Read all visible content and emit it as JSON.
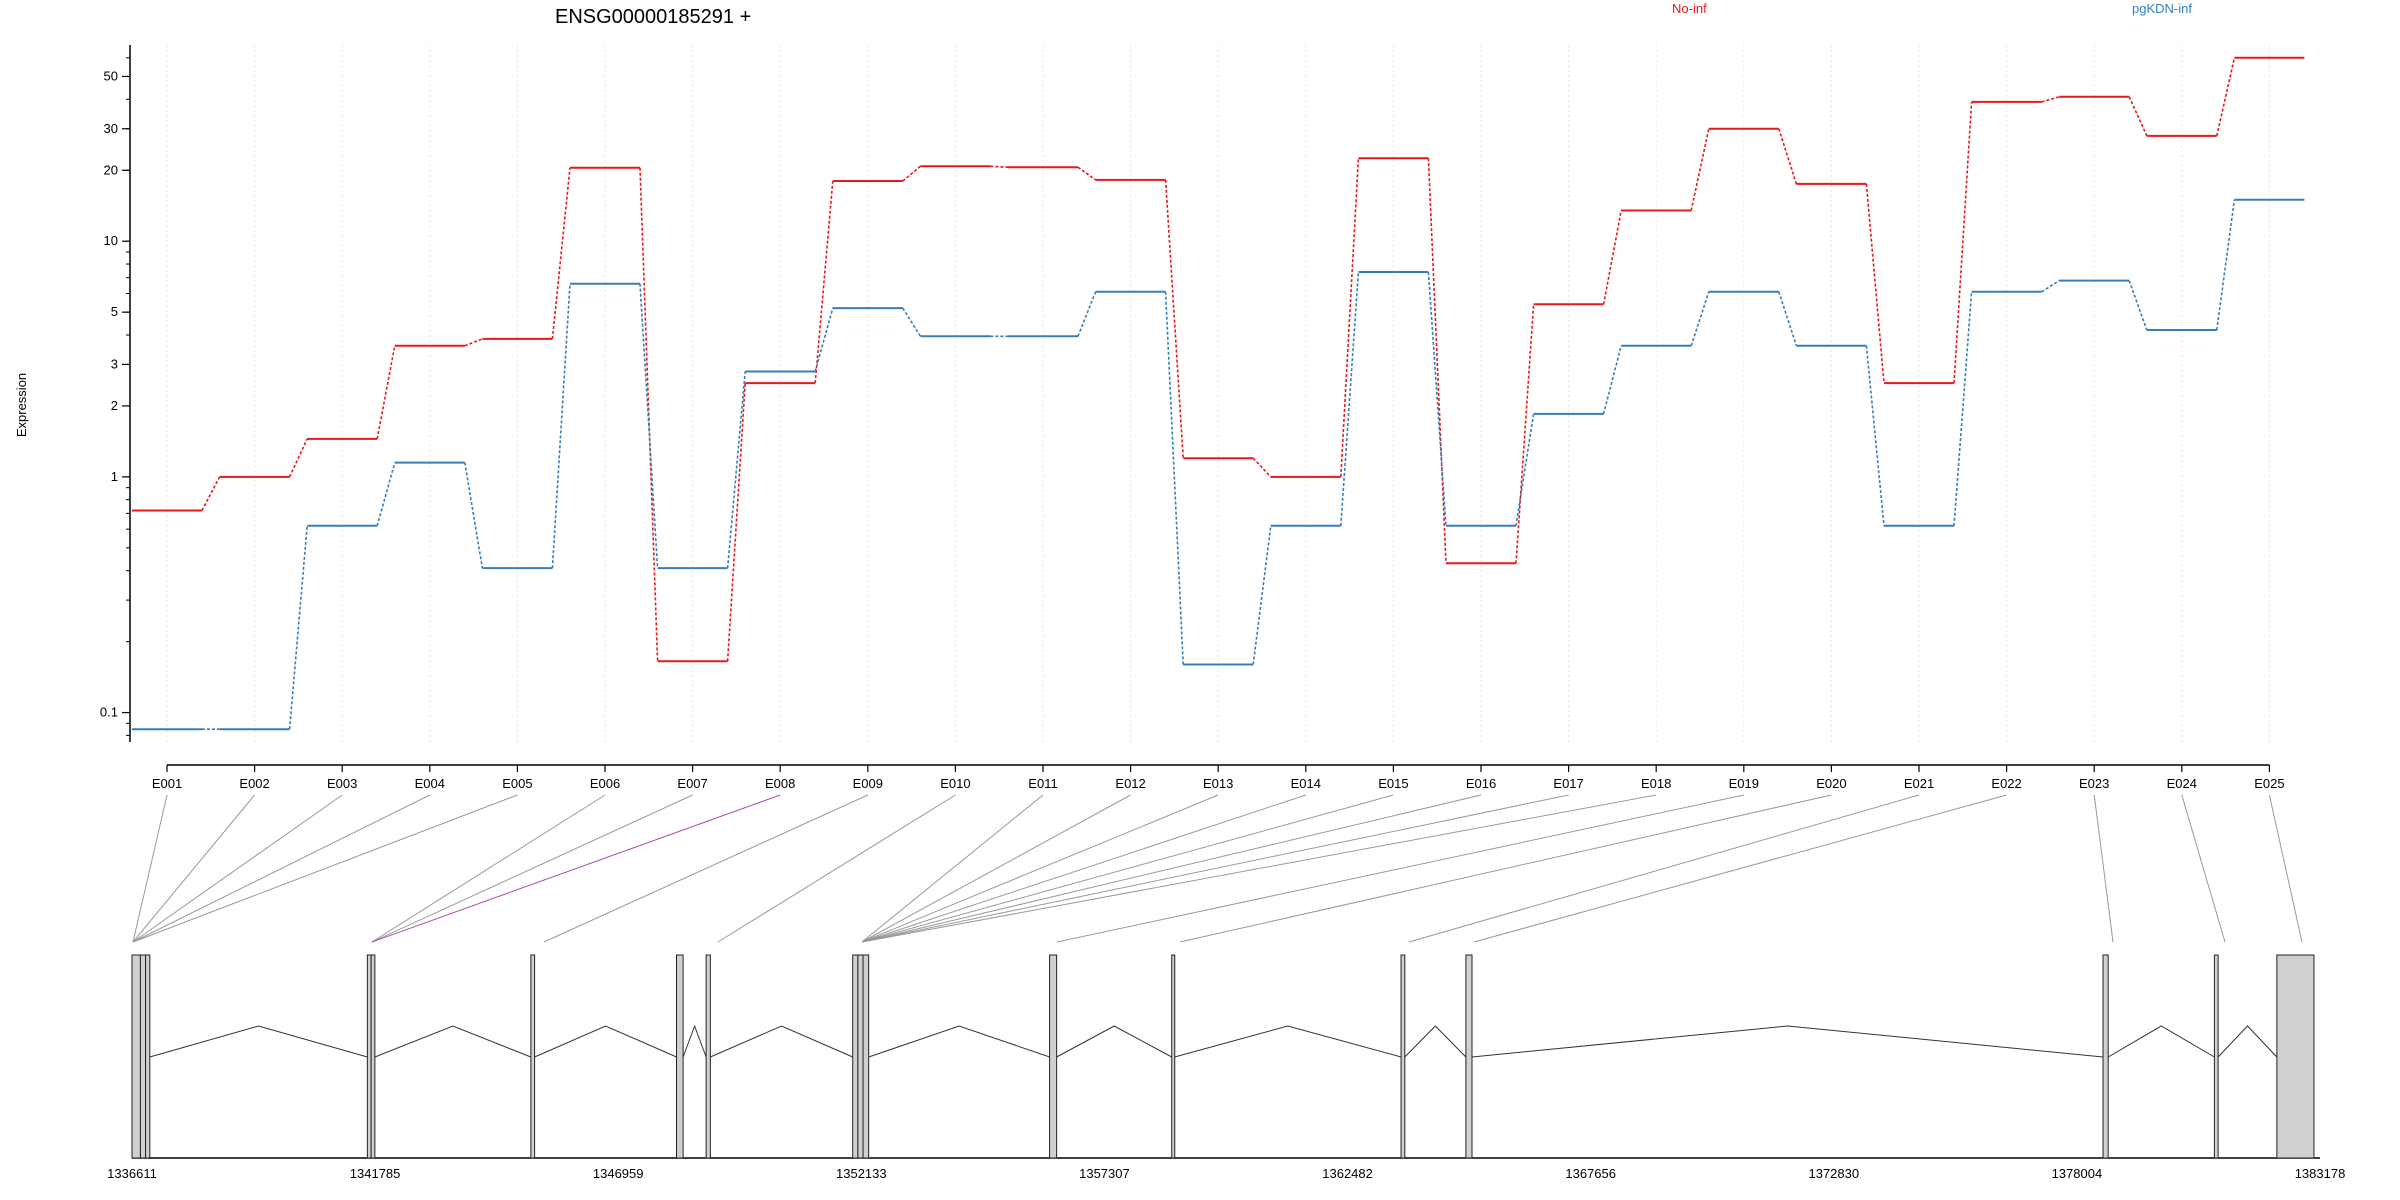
{
  "chart_data": {
    "type": "line",
    "title": "ENSG00000185291 +",
    "ylabel": "Expression",
    "yscale": "log",
    "ylim": [
      0.075,
      68
    ],
    "yticks": [
      0.1,
      1,
      2,
      3,
      5,
      10,
      20,
      30,
      50
    ],
    "categories": [
      "E001",
      "E002",
      "E003",
      "E004",
      "E005",
      "E006",
      "E007",
      "E008",
      "E009",
      "E010",
      "E011",
      "E012",
      "E013",
      "E014",
      "E015",
      "E016",
      "E017",
      "E018",
      "E019",
      "E020",
      "E021",
      "E022",
      "E023",
      "E024",
      "E025"
    ],
    "series": [
      {
        "name": "No-inf",
        "color": "#e41a1c",
        "values": [
          0.72,
          1.0,
          1.45,
          3.6,
          3.85,
          20.5,
          0.165,
          2.5,
          18.0,
          20.8,
          20.6,
          18.2,
          1.2,
          1.0,
          22.5,
          0.43,
          5.4,
          13.5,
          30.0,
          17.5,
          2.5,
          39.0,
          41.0,
          28.0,
          60.0
        ]
      },
      {
        "name": "pgKDN-inf",
        "color": "#377eb8",
        "values": [
          0.085,
          0.085,
          0.62,
          1.15,
          0.41,
          6.6,
          0.41,
          2.8,
          5.2,
          3.95,
          3.95,
          6.1,
          0.16,
          0.62,
          7.4,
          0.62,
          1.85,
          3.6,
          6.1,
          3.6,
          0.62,
          6.1,
          6.8,
          4.2,
          15.0
        ]
      }
    ],
    "highlighted_exon": "E008",
    "gene_model": {
      "coord_ticks": [
        "1336611",
        "1341785",
        "1346959",
        "1352133",
        "1357307",
        "1362482",
        "1367656",
        "1372830",
        "1378004",
        "1383178"
      ],
      "exons": [
        {
          "start": 1336611,
          "end": 1336790
        },
        {
          "start": 1336790,
          "end": 1336900
        },
        {
          "start": 1336900,
          "end": 1336990
        },
        {
          "start": 1341620,
          "end": 1341700
        },
        {
          "start": 1341700,
          "end": 1341780
        },
        {
          "start": 1345100,
          "end": 1345180
        },
        {
          "start": 1348200,
          "end": 1348340
        },
        {
          "start": 1348830,
          "end": 1348920
        },
        {
          "start": 1351950,
          "end": 1352060
        },
        {
          "start": 1352060,
          "end": 1352170
        },
        {
          "start": 1352170,
          "end": 1352290
        },
        {
          "start": 1356140,
          "end": 1356290
        },
        {
          "start": 1358740,
          "end": 1358800
        },
        {
          "start": 1363620,
          "end": 1363700
        },
        {
          "start": 1365000,
          "end": 1365130
        },
        {
          "start": 1378560,
          "end": 1378670
        },
        {
          "start": 1380930,
          "end": 1381010
        },
        {
          "start": 1382260,
          "end": 1383050
        }
      ]
    },
    "legend_placement": "top"
  }
}
